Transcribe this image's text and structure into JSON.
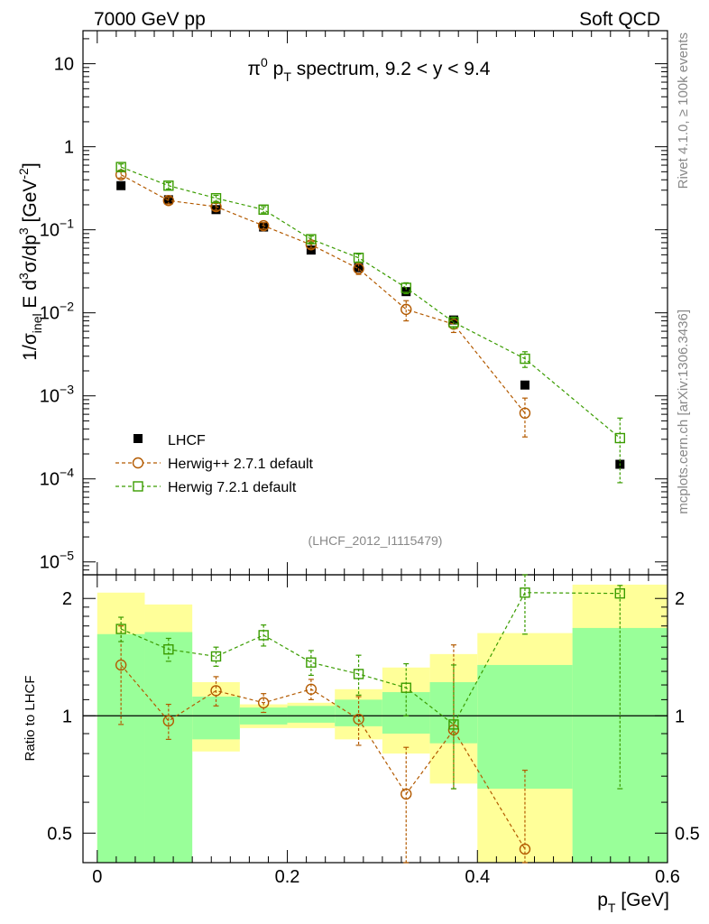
{
  "header": {
    "left": "7000 GeV pp",
    "right": "Soft QCD"
  },
  "side_labels": {
    "rivet": "Rivet 4.1.0, ≥ 100k events",
    "mcplots": "mcplots.cern.ch [arXiv:1306.3436]"
  },
  "chart_data": [
    {
      "type": "scatter",
      "panel": "main",
      "title": "π⁰ p_T spectrum, 9.2 < y < 9.4",
      "title_parts": {
        "pre": "π",
        "sup": "0",
        "mid": " p",
        "sub": "T",
        "post": " spectrum, 9.2 < y < 9.4"
      },
      "ylabel": "1/σ_inel E d³σ/dp³ [GeV⁻²]",
      "ylabel_parts": {
        "a": "1/σ",
        "sub_inel": "inel",
        "b": " E d",
        "sup3a": "3",
        "c": "σ/dp",
        "sup3b": "3",
        "d": " [GeV",
        "sup_m2": "-2",
        "e": "]"
      },
      "yscale": "log",
      "ylim": [
        7e-06,
        25
      ],
      "xlim": [
        -0.015,
        0.6
      ],
      "ytick_labels": [
        {
          "value": 10,
          "base": "10",
          "exp": ""
        },
        {
          "value": 1,
          "base": "1",
          "exp": ""
        },
        {
          "value": 0.1,
          "base": "10",
          "exp": "−1"
        },
        {
          "value": 0.01,
          "base": "10",
          "exp": "−2"
        },
        {
          "value": 0.001,
          "base": "10",
          "exp": "−3"
        },
        {
          "value": 0.0001,
          "base": "10",
          "exp": "−4"
        },
        {
          "value": 1e-05,
          "base": "10",
          "exp": "−5"
        }
      ],
      "analysis_label": "(LHCF_2012_I1115479)",
      "legend_position": "lower-left",
      "series": [
        {
          "name": "LHCF",
          "marker": "filled-square",
          "color": "#000000",
          "x": [
            0.025,
            0.075,
            0.125,
            0.175,
            0.225,
            0.275,
            0.325,
            0.375,
            0.45,
            0.55
          ],
          "values": [
            0.34,
            0.23,
            0.175,
            0.108,
            0.057,
            0.035,
            0.018,
            0.0082,
            0.00135,
            0.00015
          ]
        },
        {
          "name": "Herwig++ 2.7.1 default",
          "marker": "open-circle",
          "color": "#b35a00",
          "x": [
            0.025,
            0.075,
            0.125,
            0.175,
            0.225,
            0.275,
            0.325,
            0.375,
            0.45
          ],
          "values": [
            0.46,
            0.225,
            0.19,
            0.112,
            0.066,
            0.034,
            0.011,
            0.0073,
            0.00062
          ],
          "err_up": [
            0.04,
            0.02,
            0.018,
            0.01,
            0.006,
            0.005,
            0.003,
            0.0015,
            0.00032
          ],
          "err_down": [
            0.04,
            0.02,
            0.018,
            0.01,
            0.006,
            0.005,
            0.003,
            0.0015,
            0.0003
          ]
        },
        {
          "name": "Herwig 7.2.1 default",
          "marker": "open-square",
          "color": "#3a9c00",
          "x": [
            0.025,
            0.075,
            0.125,
            0.175,
            0.225,
            0.275,
            0.325,
            0.375,
            0.45,
            0.55
          ],
          "values": [
            0.57,
            0.34,
            0.24,
            0.175,
            0.077,
            0.046,
            0.02,
            0.0077,
            0.0028,
            0.00031
          ],
          "err_up": [
            0.05,
            0.03,
            0.02,
            0.015,
            0.007,
            0.005,
            0.003,
            0.0012,
            0.0006,
            0.00023
          ],
          "err_down": [
            0.05,
            0.03,
            0.02,
            0.015,
            0.007,
            0.005,
            0.003,
            0.0012,
            0.0006,
            0.00022
          ]
        }
      ]
    },
    {
      "type": "scatter",
      "panel": "ratio",
      "ylabel": "Ratio to LHCF",
      "xlabel": "p_T [GeV]",
      "xlabel_parts": {
        "a": "p",
        "sub": "T",
        "b": " [GeV]"
      },
      "yscale": "log",
      "ylim": [
        0.42,
        2.3
      ],
      "xlim": [
        -0.015,
        0.6
      ],
      "xticks": [
        0,
        0.2,
        0.4,
        0.6
      ],
      "xtick_labels": [
        "0",
        "0.2",
        "0.4",
        "0.6"
      ],
      "yticks": [
        0.5,
        1,
        2
      ],
      "ytick_labels": [
        "0.5",
        "1",
        "2"
      ],
      "bands": {
        "bin_edges": [
          0,
          0.05,
          0.1,
          0.15,
          0.2,
          0.25,
          0.3,
          0.35,
          0.4,
          0.5,
          0.6
        ],
        "green_low": [
          0.42,
          0.42,
          0.87,
          0.95,
          0.96,
          0.94,
          0.9,
          0.85,
          0.65,
          0.36,
          0.36
        ],
        "green_high": [
          1.62,
          1.64,
          1.12,
          1.05,
          1.06,
          1.1,
          1.15,
          1.22,
          1.35,
          1.68,
          1.68
        ],
        "yellow_low": [
          0.38,
          0.54,
          0.81,
          0.93,
          0.93,
          0.87,
          0.8,
          0.67,
          0.35,
          0.35,
          0.35
        ],
        "yellow_high": [
          2.07,
          1.93,
          1.22,
          1.07,
          1.08,
          1.17,
          1.33,
          1.44,
          1.63,
          2.17,
          2.17
        ],
        "green_color": "#99ff99",
        "yellow_color": "#ffff99"
      },
      "reference_line": 1,
      "series": [
        {
          "name": "Herwig++ 2.7.1 default",
          "marker": "open-circle",
          "color": "#b35a00",
          "x": [
            0.025,
            0.075,
            0.125,
            0.175,
            0.225,
            0.275,
            0.325,
            0.375,
            0.45
          ],
          "values": [
            1.35,
            0.97,
            1.16,
            1.08,
            1.17,
            0.98,
            0.63,
            0.92,
            0.455
          ],
          "err_up": [
            0.35,
            0.1,
            0.1,
            0.06,
            0.07,
            0.14,
            0.2,
            0.6,
            0.27
          ],
          "err_down": [
            0.4,
            0.1,
            0.1,
            0.06,
            0.07,
            0.14,
            0.21,
            0.27,
            0.06
          ]
        },
        {
          "name": "Herwig 7.2.1 default",
          "marker": "open-square",
          "color": "#3a9c00",
          "x": [
            0.025,
            0.075,
            0.125,
            0.175,
            0.225,
            0.275,
            0.325,
            0.375,
            0.45,
            0.55
          ],
          "values": [
            1.67,
            1.48,
            1.42,
            1.61,
            1.37,
            1.28,
            1.18,
            0.95,
            2.07,
            2.06
          ],
          "err_up": [
            0.12,
            0.1,
            0.08,
            0.1,
            0.1,
            0.15,
            0.18,
            0.4,
            0.35,
            0.1
          ],
          "err_down": [
            0.12,
            0.1,
            0.08,
            0.1,
            0.1,
            0.15,
            0.18,
            0.3,
            0.45,
            1.41
          ]
        }
      ]
    }
  ]
}
